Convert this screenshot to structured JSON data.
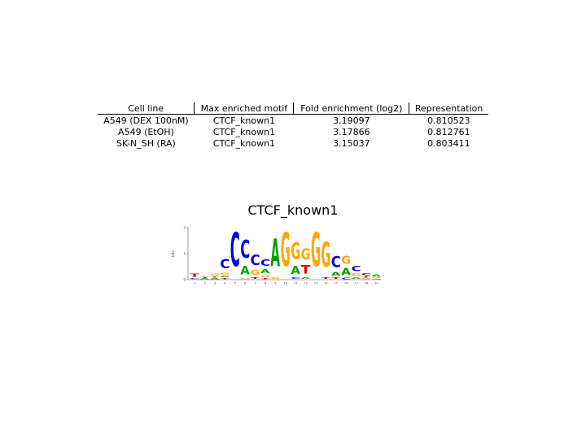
{
  "table": {
    "headers": [
      "Cell line",
      "Max enriched motif",
      "Fold enrichment (log2)",
      "Representation"
    ],
    "rows": [
      [
        "A549 (DEX 100nM)",
        "CTCF_known1",
        "3.19097",
        "0.810523"
      ],
      [
        "A549 (EtOH)",
        "CTCF_known1",
        "3.17866",
        "0.812761"
      ],
      [
        "SK-N_SH (RA)",
        "CTCF_known1",
        "3.15037",
        "0.803411"
      ]
    ]
  },
  "motif": {
    "title": "CTCF_known1",
    "ylabel": "bits",
    "yticks": [
      "2",
      "1",
      "0"
    ],
    "positions": [
      "1",
      "2",
      "3",
      "4",
      "5",
      "6",
      "7",
      "8",
      "9",
      "10",
      "11",
      "12",
      "13",
      "14",
      "15",
      "16",
      "17",
      "18",
      "19"
    ],
    "colors": {
      "A": "#00a000",
      "C": "#0000e0",
      "G": "#ffa500",
      "T": "#e00000"
    },
    "columns": [
      [
        {
          "l": "T",
          "h": 0.18
        },
        {
          "l": "C",
          "h": 0.06
        }
      ],
      [
        {
          "l": "A",
          "h": 0.05
        },
        {
          "l": "T",
          "h": 0.05
        }
      ],
      [
        {
          "l": "G",
          "h": 0.12
        },
        {
          "l": "A",
          "h": 0.06
        },
        {
          "l": "T",
          "h": 0.06
        }
      ],
      [
        {
          "l": "C",
          "h": 0.55
        },
        {
          "l": "G",
          "h": 0.12
        },
        {
          "l": "A",
          "h": 0.1
        },
        {
          "l": "T",
          "h": 0.06
        }
      ],
      [
        {
          "l": "C",
          "h": 1.95
        }
      ],
      [
        {
          "l": "C",
          "h": 1.05
        },
        {
          "l": "A",
          "h": 0.5
        },
        {
          "l": "G",
          "h": 0.06
        }
      ],
      [
        {
          "l": "C",
          "h": 0.6
        },
        {
          "l": "G",
          "h": 0.3
        },
        {
          "l": "T",
          "h": 0.1
        }
      ],
      [
        {
          "l": "C",
          "h": 0.35
        },
        {
          "l": "A",
          "h": 0.25
        },
        {
          "l": "G",
          "h": 0.12
        },
        {
          "l": "T",
          "h": 0.06
        }
      ],
      [
        {
          "l": "A",
          "h": 1.6
        },
        {
          "l": "G",
          "h": 0.1
        }
      ],
      [
        {
          "l": "G",
          "h": 1.95
        }
      ],
      [
        {
          "l": "G",
          "h": 0.95
        },
        {
          "l": "A",
          "h": 0.45
        },
        {
          "l": "C",
          "h": 0.1
        }
      ],
      [
        {
          "l": "G",
          "h": 0.65
        },
        {
          "l": "T",
          "h": 0.5
        },
        {
          "l": "A",
          "h": 0.1
        }
      ],
      [
        {
          "l": "G",
          "h": 1.95
        }
      ],
      [
        {
          "l": "G",
          "h": 1.45
        },
        {
          "l": "T",
          "h": 0.1
        }
      ],
      [
        {
          "l": "C",
          "h": 0.65
        },
        {
          "l": "A",
          "h": 0.2
        },
        {
          "l": "T",
          "h": 0.1
        }
      ],
      [
        {
          "l": "G",
          "h": 0.45
        },
        {
          "l": "A",
          "h": 0.4
        },
        {
          "l": "C",
          "h": 0.08
        }
      ],
      [
        {
          "l": "C",
          "h": 0.3
        },
        {
          "l": "G",
          "h": 0.15
        },
        {
          "l": "A",
          "h": 0.1
        }
      ],
      [
        {
          "l": "C",
          "h": 0.12
        },
        {
          "l": "T",
          "h": 0.08
        },
        {
          "l": "G",
          "h": 0.06
        }
      ],
      [
        {
          "l": "A",
          "h": 0.12
        },
        {
          "l": "G",
          "h": 0.06
        },
        {
          "l": "C",
          "h": 0.04
        }
      ]
    ]
  }
}
